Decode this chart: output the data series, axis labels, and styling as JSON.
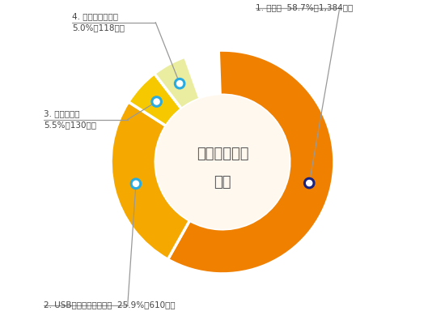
{
  "title_line1": "情報漏えいの",
  "title_line2": "経路",
  "segments": [
    {
      "label": "1. 紙媒体  58.7%（1,384件）",
      "value": 58.7,
      "color": "#F08000",
      "dot_color": "#1A237E"
    },
    {
      "label": "2. USB等の可搬記録媒体  25.9%（610件）",
      "value": 25.9,
      "color": "#F5A800",
      "dot_color": "#29ABE2"
    },
    {
      "label": "3. 電子メール\n5.5%（130件）",
      "value": 5.5,
      "color": "#F5C800",
      "dot_color": "#29ABE2"
    },
    {
      "label": "4. インターネット\n5.0%（118件）",
      "value": 5.0,
      "color": "#EAEDA0",
      "dot_color": "#29ABE2"
    },
    {
      "label": "",
      "value": 4.9,
      "color": "#FFFFFF",
      "dot_color": "none"
    }
  ],
  "center_color": "#FFF8EE",
  "background_color": "#FFFFFF",
  "text_color": "#444444",
  "annotation_color": "#999999",
  "start_angle": 92,
  "outer_r": 1.0,
  "inner_r": 0.6
}
